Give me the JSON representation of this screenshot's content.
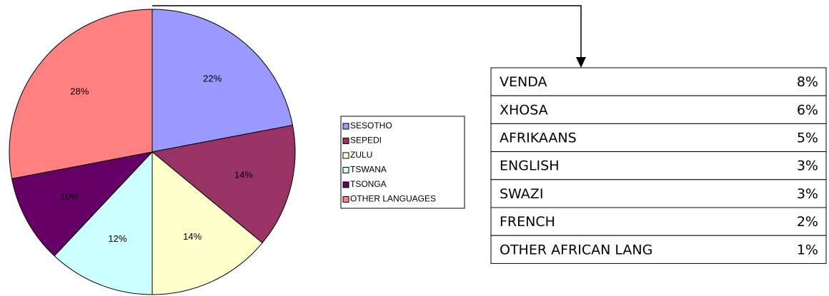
{
  "chart_data": {
    "type": "pie",
    "categories": [
      "SESOTHO",
      "SEPEDI",
      "ZULU",
      "TSWANA",
      "TSONGA",
      "OTHER LANGUAGES"
    ],
    "values": [
      22,
      14,
      14,
      12,
      10,
      28
    ],
    "value_labels": [
      "22%",
      "14%",
      "14%",
      "12%",
      "10%",
      "28%"
    ],
    "colors": [
      "#9999ff",
      "#993366",
      "#ffffcc",
      "#ccffff",
      "#660066",
      "#ff8080"
    ],
    "legend": "right"
  },
  "table": {
    "rows": [
      [
        "VENDA",
        "8%"
      ],
      [
        "XHOSA",
        "6%"
      ],
      [
        "AFRIKAANS",
        "5%"
      ],
      [
        "ENGLISH",
        "3%"
      ],
      [
        "SWAZI",
        "3%"
      ],
      [
        "FRENCH",
        "2%"
      ],
      [
        "OTHER AFRICAN LANG",
        "1%"
      ]
    ]
  }
}
